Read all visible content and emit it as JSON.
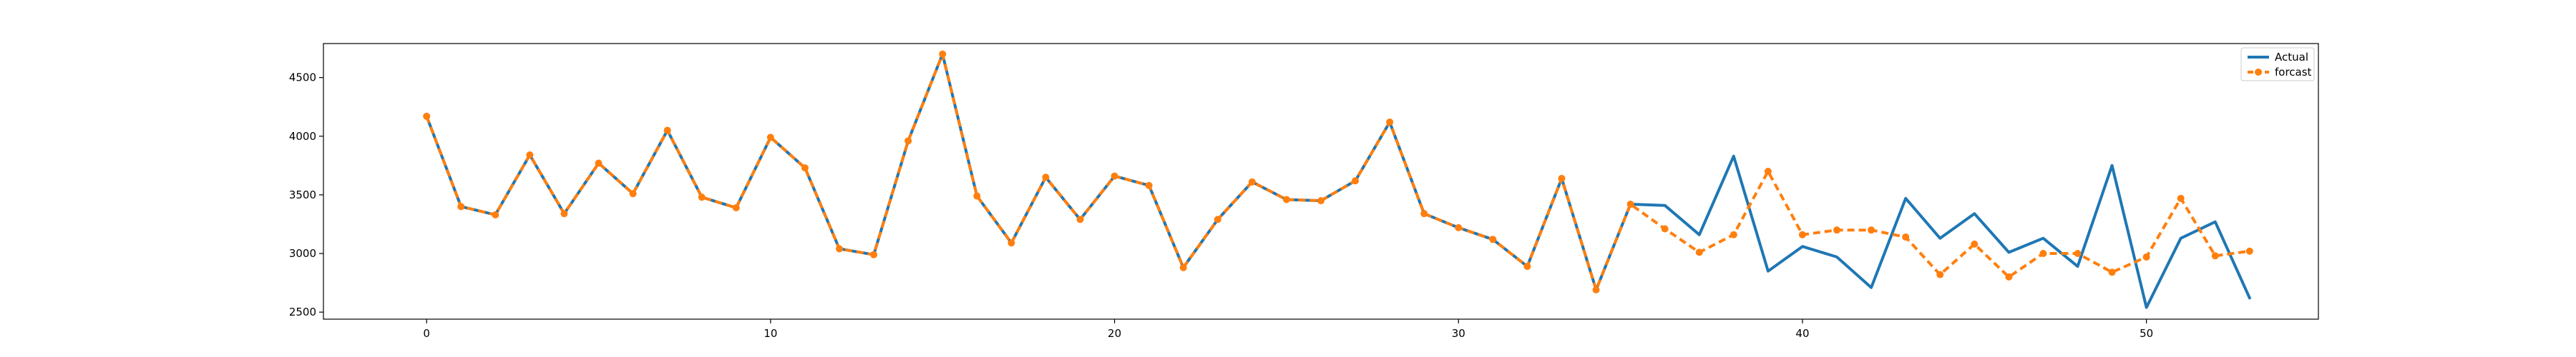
{
  "chart_data": {
    "type": "line",
    "title": "",
    "xlabel": "",
    "ylabel": "",
    "xlim": [
      -3,
      55
    ],
    "ylim": [
      2440,
      4790
    ],
    "x_ticks": [
      0,
      10,
      20,
      30,
      40,
      50
    ],
    "y_ticks": [
      2500,
      3000,
      3500,
      4000,
      4500
    ],
    "grid": false,
    "legend_position": "top-right",
    "series": [
      {
        "name": "Actual",
        "color": "#1f77b4",
        "style": "solid",
        "x": [
          0,
          1,
          2,
          3,
          4,
          5,
          6,
          7,
          8,
          9,
          10,
          11,
          12,
          13,
          14,
          15,
          16,
          17,
          18,
          19,
          20,
          21,
          22,
          23,
          24,
          25,
          26,
          27,
          28,
          29,
          30,
          31,
          32,
          33,
          34,
          35,
          36,
          37,
          38,
          39,
          40,
          41,
          42,
          43,
          44,
          45,
          46,
          47,
          48,
          49,
          50,
          51,
          52,
          53
        ],
        "values": [
          4170,
          3400,
          3330,
          3840,
          3340,
          3770,
          3510,
          4050,
          3480,
          3390,
          3990,
          3730,
          3040,
          2990,
          3960,
          4700,
          3490,
          3090,
          3650,
          3290,
          3660,
          3580,
          2880,
          3290,
          3610,
          3460,
          3450,
          3620,
          4120,
          3340,
          3220,
          3120,
          2890,
          3640,
          2690,
          3420,
          3410,
          3160,
          3830,
          2850,
          3060,
          2970,
          2710,
          3470,
          3130,
          3340,
          3010,
          3130,
          2890,
          3750,
          2540,
          3130,
          3270,
          2620
        ]
      },
      {
        "name": "forcast",
        "color": "#ff7f0e",
        "style": "dashed",
        "marker": "circle",
        "x": [
          0,
          1,
          2,
          3,
          4,
          5,
          6,
          7,
          8,
          9,
          10,
          11,
          12,
          13,
          14,
          15,
          16,
          17,
          18,
          19,
          20,
          21,
          22,
          23,
          24,
          25,
          26,
          27,
          28,
          29,
          30,
          31,
          32,
          33,
          34,
          35,
          36,
          37,
          38,
          39,
          40,
          41,
          42,
          43,
          44,
          45,
          46,
          47,
          48,
          49,
          50,
          51,
          52,
          53
        ],
        "values": [
          4170,
          3400,
          3330,
          3840,
          3340,
          3770,
          3510,
          4050,
          3480,
          3390,
          3990,
          3730,
          3040,
          2990,
          3960,
          4700,
          3490,
          3090,
          3650,
          3290,
          3660,
          3580,
          2880,
          3290,
          3610,
          3460,
          3450,
          3620,
          4120,
          3340,
          3220,
          3120,
          2890,
          3640,
          2690,
          3420,
          3210,
          3010,
          3160,
          3700,
          3160,
          3200,
          3200,
          3140,
          2820,
          3080,
          2800,
          3000,
          3000,
          2840,
          2970,
          3470,
          2980,
          3020
        ]
      }
    ]
  }
}
